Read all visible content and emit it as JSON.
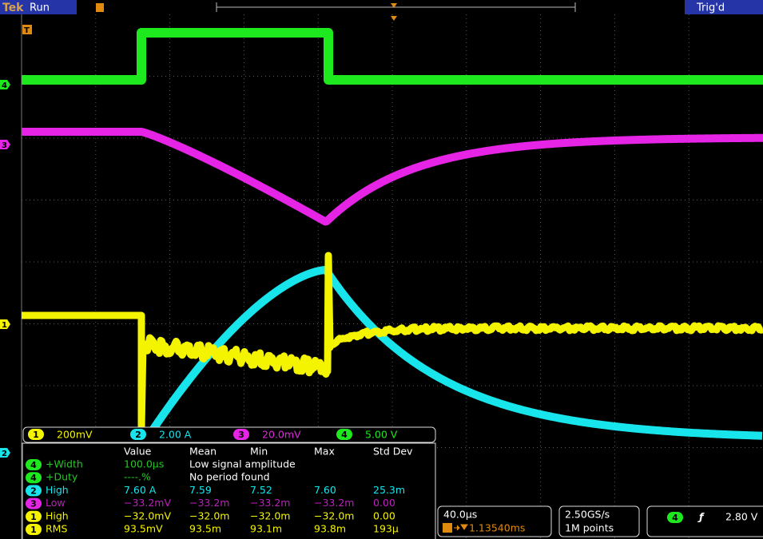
{
  "header": {
    "brand": "Tek",
    "state": "Run",
    "trigger_status": "Trig'd",
    "trigger_marker": "T"
  },
  "channels": [
    {
      "id": "1",
      "color": "#f4f400",
      "scale": "200mV"
    },
    {
      "id": "2",
      "color": "#18e4ec",
      "scale": "2.00 A"
    },
    {
      "id": "3",
      "color": "#e524e5",
      "scale": "20.0mV"
    },
    {
      "id": "4",
      "color": "#1ee81e",
      "scale": "5.00 V"
    }
  ],
  "measurements": {
    "columns": [
      "Value",
      "Mean",
      "Min",
      "Max",
      "Std Dev"
    ],
    "rows": [
      {
        "channel": "4",
        "name": "+Width",
        "value": "100.0µs",
        "message": "Low signal amplitude"
      },
      {
        "channel": "4",
        "name": "+Duty",
        "value": "----.%",
        "message": "No period found"
      },
      {
        "channel": "2",
        "name": "High",
        "value": "7.60 A",
        "mean": "7.59",
        "min": "7.52",
        "max": "7.60",
        "std_dev": "25.3m"
      },
      {
        "channel": "3",
        "name": "Low",
        "value": "−33.2mV",
        "mean": "−33.2m",
        "min": "−33.2m",
        "max": "−33.2m",
        "std_dev": "0.00"
      },
      {
        "channel": "1",
        "name": "High",
        "value": "−32.0mV",
        "mean": "−32.0m",
        "min": "−32.0m",
        "max": "−32.0m",
        "std_dev": "0.00"
      },
      {
        "channel": "1",
        "name": "RMS",
        "value": "93.5mV",
        "mean": "93.5m",
        "min": "93.1m",
        "max": "93.8m",
        "std_dev": "193µ"
      }
    ]
  },
  "horizontal": {
    "scale": "40.0µs",
    "position": "1.13540ms"
  },
  "acquisition": {
    "sample_rate": "2.50GS/s",
    "record_length": "1M points"
  },
  "trigger": {
    "channel": "4",
    "level": "2.80 V"
  }
}
